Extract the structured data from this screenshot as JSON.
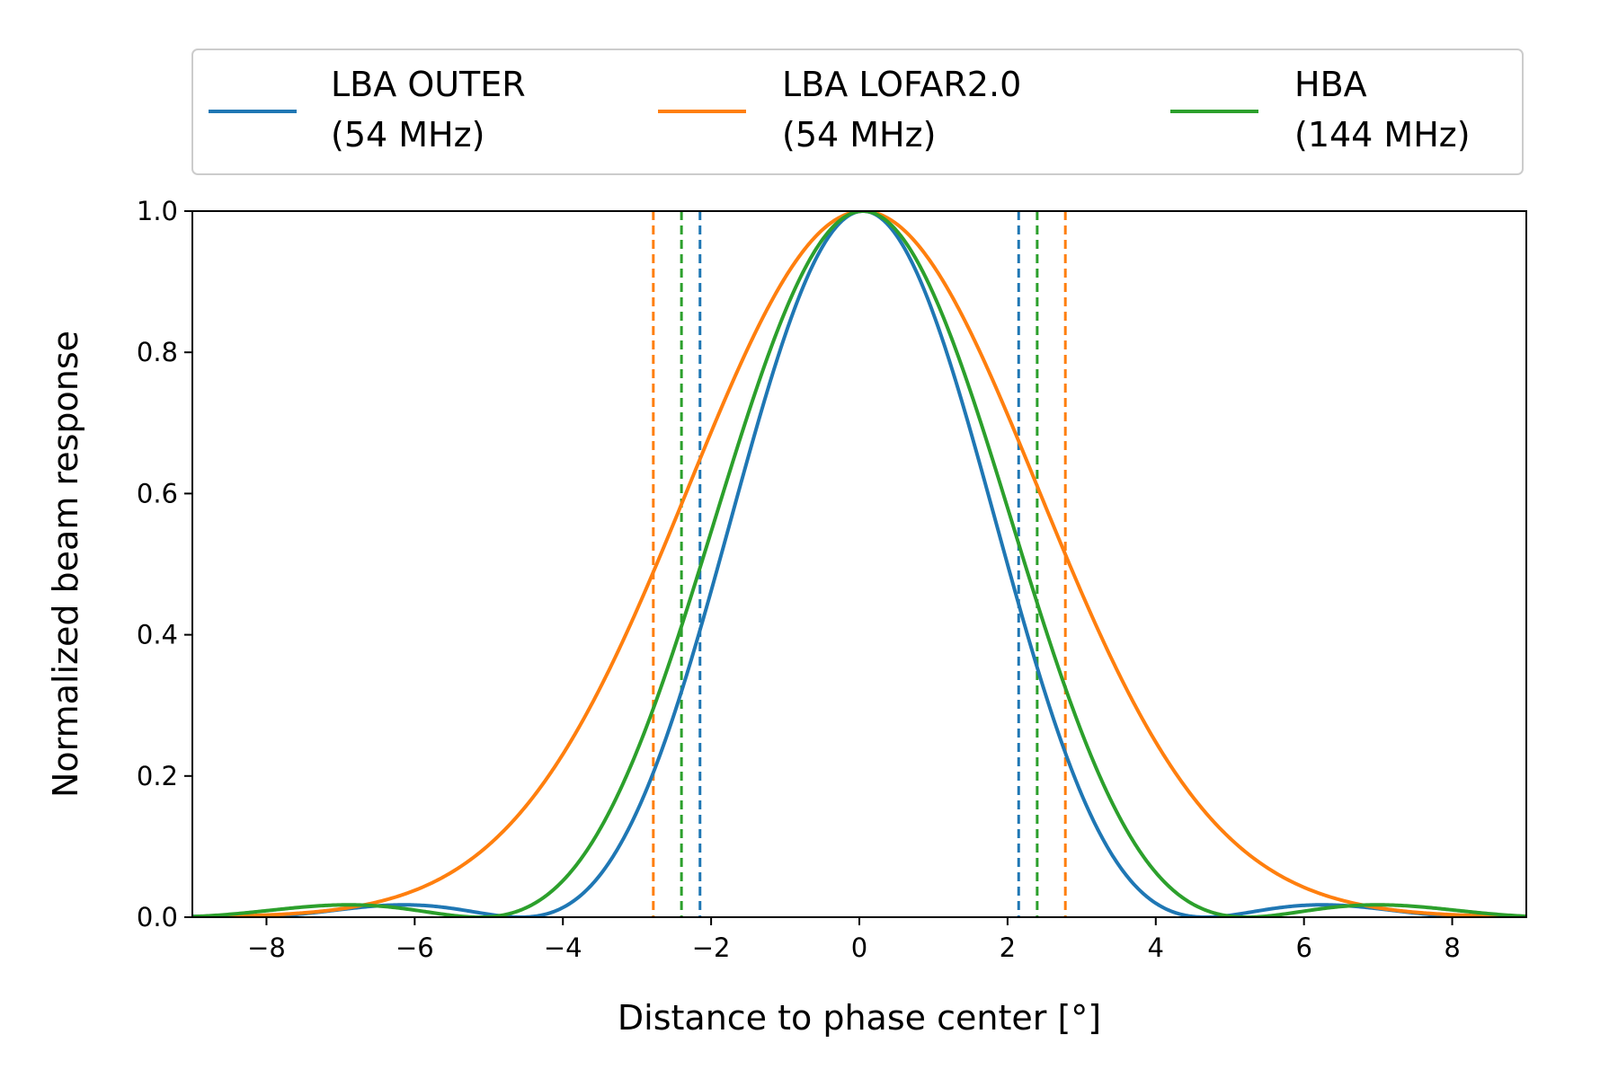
{
  "chart_data": {
    "type": "line",
    "title": "",
    "xlabel": "Distance to phase center [°]",
    "ylabel": "Normalized beam response",
    "xlim": [
      -9,
      9
    ],
    "ylim": [
      0,
      1.0
    ],
    "xticks": [
      -8,
      -6,
      -4,
      -2,
      0,
      2,
      4,
      6,
      8
    ],
    "xtick_labels": [
      "−8",
      "−6",
      "−4",
      "−2",
      "0",
      "2",
      "4",
      "6",
      "8"
    ],
    "yticks": [
      0,
      0.2,
      0.4,
      0.6,
      0.8,
      1.0
    ],
    "ytick_labels": [
      "0.0",
      "0.2",
      "0.4",
      "0.6",
      "0.8",
      "1.0"
    ],
    "grid": false,
    "legend_position": "top",
    "series": [
      {
        "name": "LBA OUTER",
        "name_line1": "LBA OUTER",
        "name_line2": "(54 MHz)",
        "color": "#1f77b4",
        "model": "airy",
        "center": 0.05,
        "first_null": 4.62,
        "hpbw_markers": [
          -2.15,
          2.15
        ]
      },
      {
        "name": "LBA LOFAR2.0",
        "name_line1": "LBA LOFAR2.0",
        "name_line2": "(54 MHz)",
        "color": "#ff7f0e",
        "model": "gaussian",
        "center": 0.05,
        "fwhm": 5.57,
        "hpbw_markers": [
          -2.78,
          2.78
        ]
      },
      {
        "name": "HBA",
        "name_line1": "HBA",
        "name_line2": "(144 MHz)",
        "color": "#2ca02c",
        "model": "airy",
        "center": 0.05,
        "first_null": 5.18,
        "hpbw_markers": [
          -2.4,
          2.4
        ]
      }
    ]
  }
}
